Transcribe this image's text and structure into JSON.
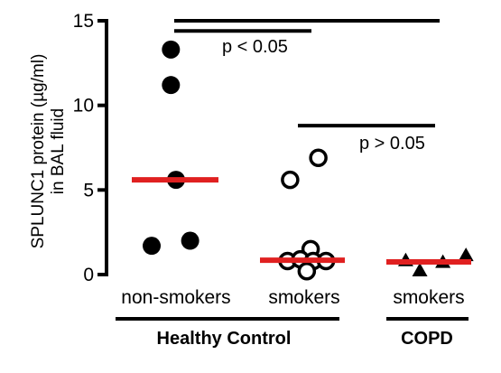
{
  "chart_data": {
    "type": "scatter",
    "ylabel_lines": [
      "SPLUNC1 protein (µg/ml)",
      "in BAL fluid"
    ],
    "ylim": [
      0,
      15
    ],
    "yticks": [
      0,
      5,
      10,
      15
    ],
    "categories": [
      "non-smokers",
      "smokers",
      "smokers"
    ],
    "groups": [
      {
        "label": "Healthy Control",
        "categories": [
          0,
          1
        ]
      },
      {
        "label": "COPD",
        "categories": [
          2
        ]
      }
    ],
    "series": [
      {
        "category": 0,
        "marker": "filled-circle",
        "points": [
          {
            "x": -0.04,
            "y": 13.3
          },
          {
            "x": -0.04,
            "y": 11.2
          },
          {
            "x": 0.0,
            "y": 5.6
          },
          {
            "x": -0.19,
            "y": 1.7
          },
          {
            "x": 0.11,
            "y": 2.0
          }
        ],
        "median": 5.6
      },
      {
        "category": 1,
        "marker": "open-circle",
        "points": [
          {
            "x": -0.11,
            "y": 5.6
          },
          {
            "x": 0.11,
            "y": 6.9
          },
          {
            "x": 0.05,
            "y": 1.5
          },
          {
            "x": -0.13,
            "y": 0.8
          },
          {
            "x": -0.03,
            "y": 0.9
          },
          {
            "x": 0.07,
            "y": 0.8
          },
          {
            "x": 0.17,
            "y": 0.8
          },
          {
            "x": 0.02,
            "y": 0.2
          }
        ],
        "median": 0.85
      },
      {
        "category": 2,
        "marker": "filled-triangle",
        "points": [
          {
            "x": -0.18,
            "y": 0.8
          },
          {
            "x": -0.07,
            "y": 0.2
          },
          {
            "x": 0.11,
            "y": 0.7
          },
          {
            "x": 0.29,
            "y": 1.1
          }
        ],
        "median": 0.75
      }
    ],
    "median_color": "#e02020",
    "marker_color": "#000000",
    "comparisons": [
      {
        "from": 0,
        "to": 1,
        "y": 14.4,
        "label": "p < 0.05"
      },
      {
        "from": 1,
        "to": 2,
        "y": 8.8,
        "label": "p > 0.05"
      },
      {
        "from": 0,
        "to": 2,
        "y": 15.0,
        "label": ""
      }
    ],
    "grid": false,
    "legend": "none"
  }
}
